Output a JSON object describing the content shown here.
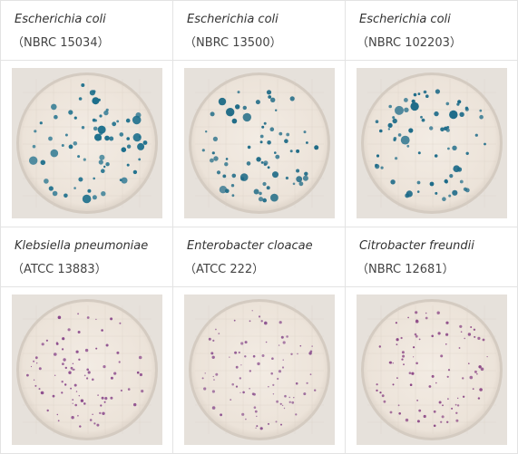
{
  "cells": [
    {
      "species": "Escherichia coli",
      "strain": "（NBRC 15034）",
      "colony_color": "#1d6f8c",
      "style": "coliform-blue"
    },
    {
      "species": "Escherichia coli",
      "strain": "（NBRC 13500）",
      "colony_color": "#1e6a86",
      "style": "coliform-blue"
    },
    {
      "species": "Escherichia coli",
      "strain": "（NBRC 102203）",
      "colony_color": "#1c6a88",
      "style": "coliform-blue"
    },
    {
      "species": "Klebsiella pneumoniae",
      "strain": "（ATCC 13883）",
      "colony_color": "#8b4a8c",
      "style": "coliform-purple"
    },
    {
      "species": "Enterobacter cloacae",
      "strain": "（ATCC 222）",
      "colony_color": "#8e5591",
      "style": "coliform-purple"
    },
    {
      "species": "Citrobacter freundii",
      "strain": "（NBRC 12681）",
      "colony_color": "#8a4585",
      "style": "coliform-purple"
    }
  ]
}
